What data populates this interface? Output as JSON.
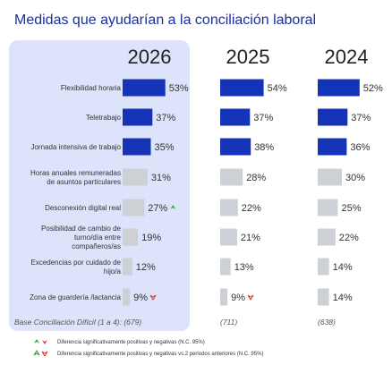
{
  "colors": {
    "highlight": "#1433b6",
    "other": "#cdd0d4",
    "panel": "#dde3fa",
    "up": "#2e9e3e",
    "down": "#d63a3a",
    "title": "#1c2ea0"
  },
  "chart_data": {
    "type": "bar",
    "orientation": "horizontal",
    "title": "Medidas que ayudarían a la conciliación laboral",
    "categories": [
      [
        "Flexibilidad horaria"
      ],
      [
        "Teletrabajo"
      ],
      [
        "Jornada intensiva de trabajo"
      ],
      [
        "Horas anuales remuneradas",
        "de asuntos particulares"
      ],
      [
        "Desconexión digital real"
      ],
      [
        "Posibilidad de cambio de",
        "turno/día entre",
        "compañeros/as"
      ],
      [
        "Excedencias por cuidado de",
        "hijo/a"
      ],
      [
        "Zona de guardería /lactancia"
      ]
    ],
    "highlighted_count": 3,
    "series": [
      {
        "name": "2026",
        "values": [
          53,
          37,
          35,
          31,
          27,
          19,
          12,
          9
        ],
        "labels": [
          "53%",
          "37%",
          "35%",
          "31%",
          "27%",
          "19%",
          "12%",
          "9%"
        ],
        "base": "Base Conciliación Difícil (1 a 4): (679)"
      },
      {
        "name": "2025",
        "values": [
          54,
          37,
          38,
          28,
          22,
          21,
          13,
          9
        ],
        "labels": [
          "54%",
          "37%",
          "38%",
          "28%",
          "22%",
          "21%",
          "13%",
          "9%"
        ],
        "base": "(711)"
      },
      {
        "name": "2024",
        "values": [
          52,
          37,
          36,
          30,
          25,
          22,
          14,
          14
        ],
        "labels": [
          "52%",
          "37%",
          "36%",
          "30%",
          "25%",
          "22%",
          "14%",
          "14%"
        ],
        "base": "(638)"
      }
    ],
    "significance": [
      {
        "series": "2026",
        "category_index": 4,
        "direction": "up"
      },
      {
        "series": "2026",
        "category_index": 7,
        "direction": "down"
      },
      {
        "series": "2025",
        "category_index": 7,
        "direction": "down"
      }
    ],
    "xlim": [
      0,
      100
    ],
    "legend": [
      {
        "text": "Diferencia significativamente positivas y negativas (N.C. 95%)",
        "style": "filled"
      },
      {
        "text": "Diferencia significativamente positivas y negativas vs.2 periodos anteriores (N.C. 95%)",
        "style": "outline"
      }
    ]
  }
}
